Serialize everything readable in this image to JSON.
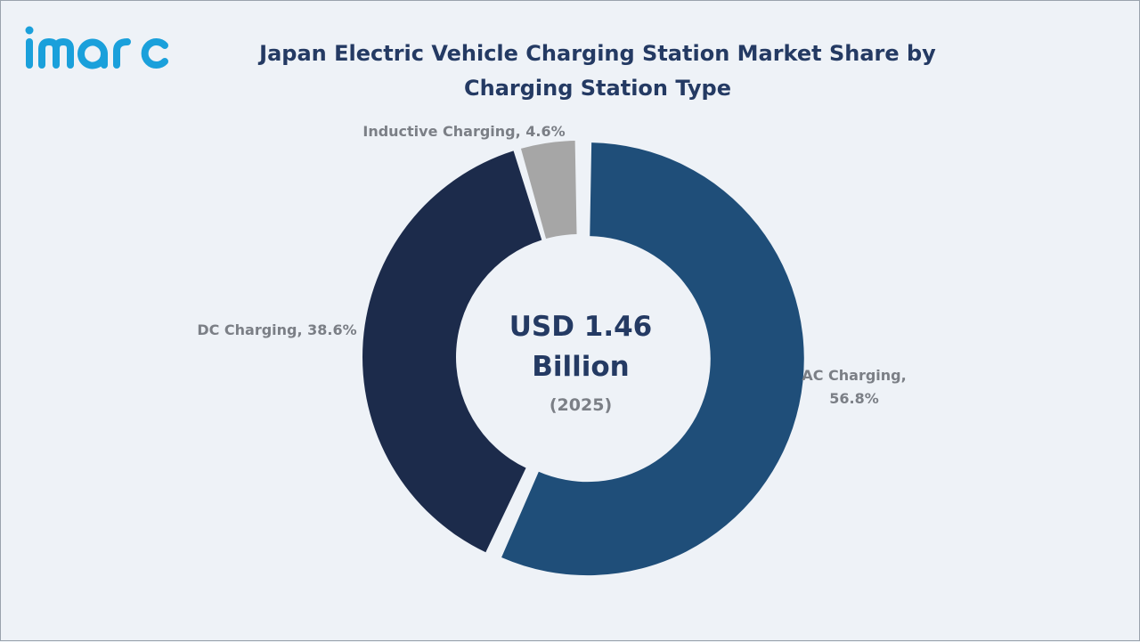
{
  "brand": {
    "name": "imarc",
    "color": "#1aa0db"
  },
  "chart_data": {
    "type": "pie",
    "variant": "donut",
    "title": "Japan Electric Vehicle Charging Station Market Share by\nCharging Station Type",
    "center_text": {
      "value_line1": "USD 1.46",
      "value_line2": "Billion",
      "year": "(2025)"
    },
    "slices": [
      {
        "label": "AC Charging",
        "value": 56.8,
        "display": "AC Charging,\n56.8%",
        "color": "#1f4e79",
        "exploded": true
      },
      {
        "label": "DC Charging",
        "value": 38.6,
        "display": "DC Charging, 38.6%",
        "color": "#1c2b4b",
        "exploded": false
      },
      {
        "label": "Inductive Charging",
        "value": 4.6,
        "display": "Inductive Charging, 4.6%",
        "color": "#a6a6a6",
        "exploded": false
      }
    ],
    "unit": "%"
  }
}
